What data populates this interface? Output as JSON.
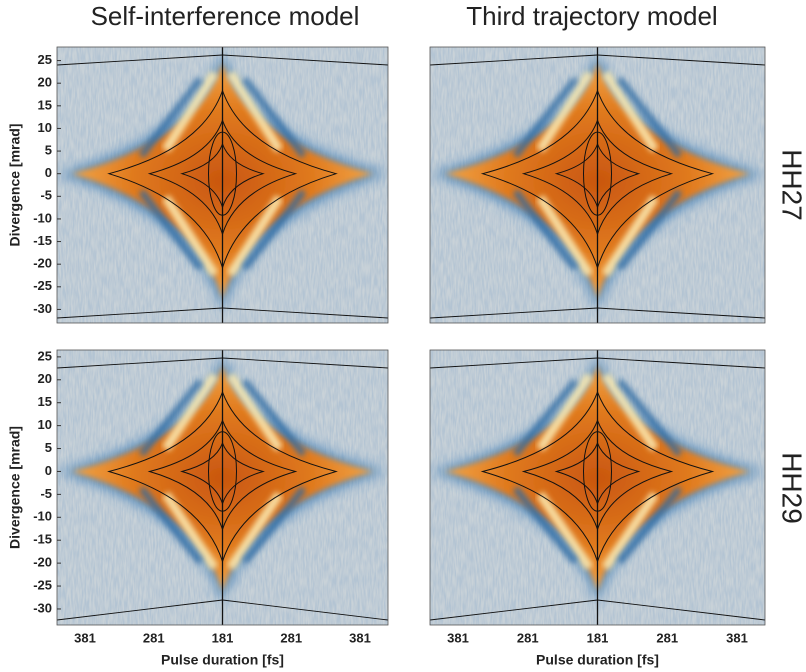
{
  "column_titles": [
    "Self-interference model",
    "Third trajectory model"
  ],
  "row_labels": [
    "HH27",
    "HH29"
  ],
  "chart_data": [
    {
      "type": "heatmap",
      "ylabel": "Divergence [mrad]",
      "ylim": [
        -33,
        28
      ],
      "yticks": [
        25,
        20,
        15,
        10,
        5,
        0,
        -5,
        -10,
        -15,
        -20,
        -25,
        -30
      ]
    },
    {
      "type": "heatmap",
      "ylim": [
        -33,
        28
      ]
    },
    {
      "type": "heatmap",
      "ylabel": "Divergence [mrad]",
      "xlabel": "Pulse duration [fs]",
      "categories": [
        "381",
        "281",
        "181",
        "281",
        "381"
      ],
      "ylim": [
        -33.5,
        26.5
      ],
      "yticks": [
        25,
        20,
        15,
        10,
        5,
        0,
        -5,
        -10,
        -15,
        -20,
        -25,
        -30
      ]
    },
    {
      "type": "heatmap",
      "xlabel": "Pulse duration [fs]",
      "categories": [
        "381",
        "281",
        "181",
        "281",
        "381"
      ],
      "ylim": [
        -33.5,
        26.5
      ]
    }
  ]
}
